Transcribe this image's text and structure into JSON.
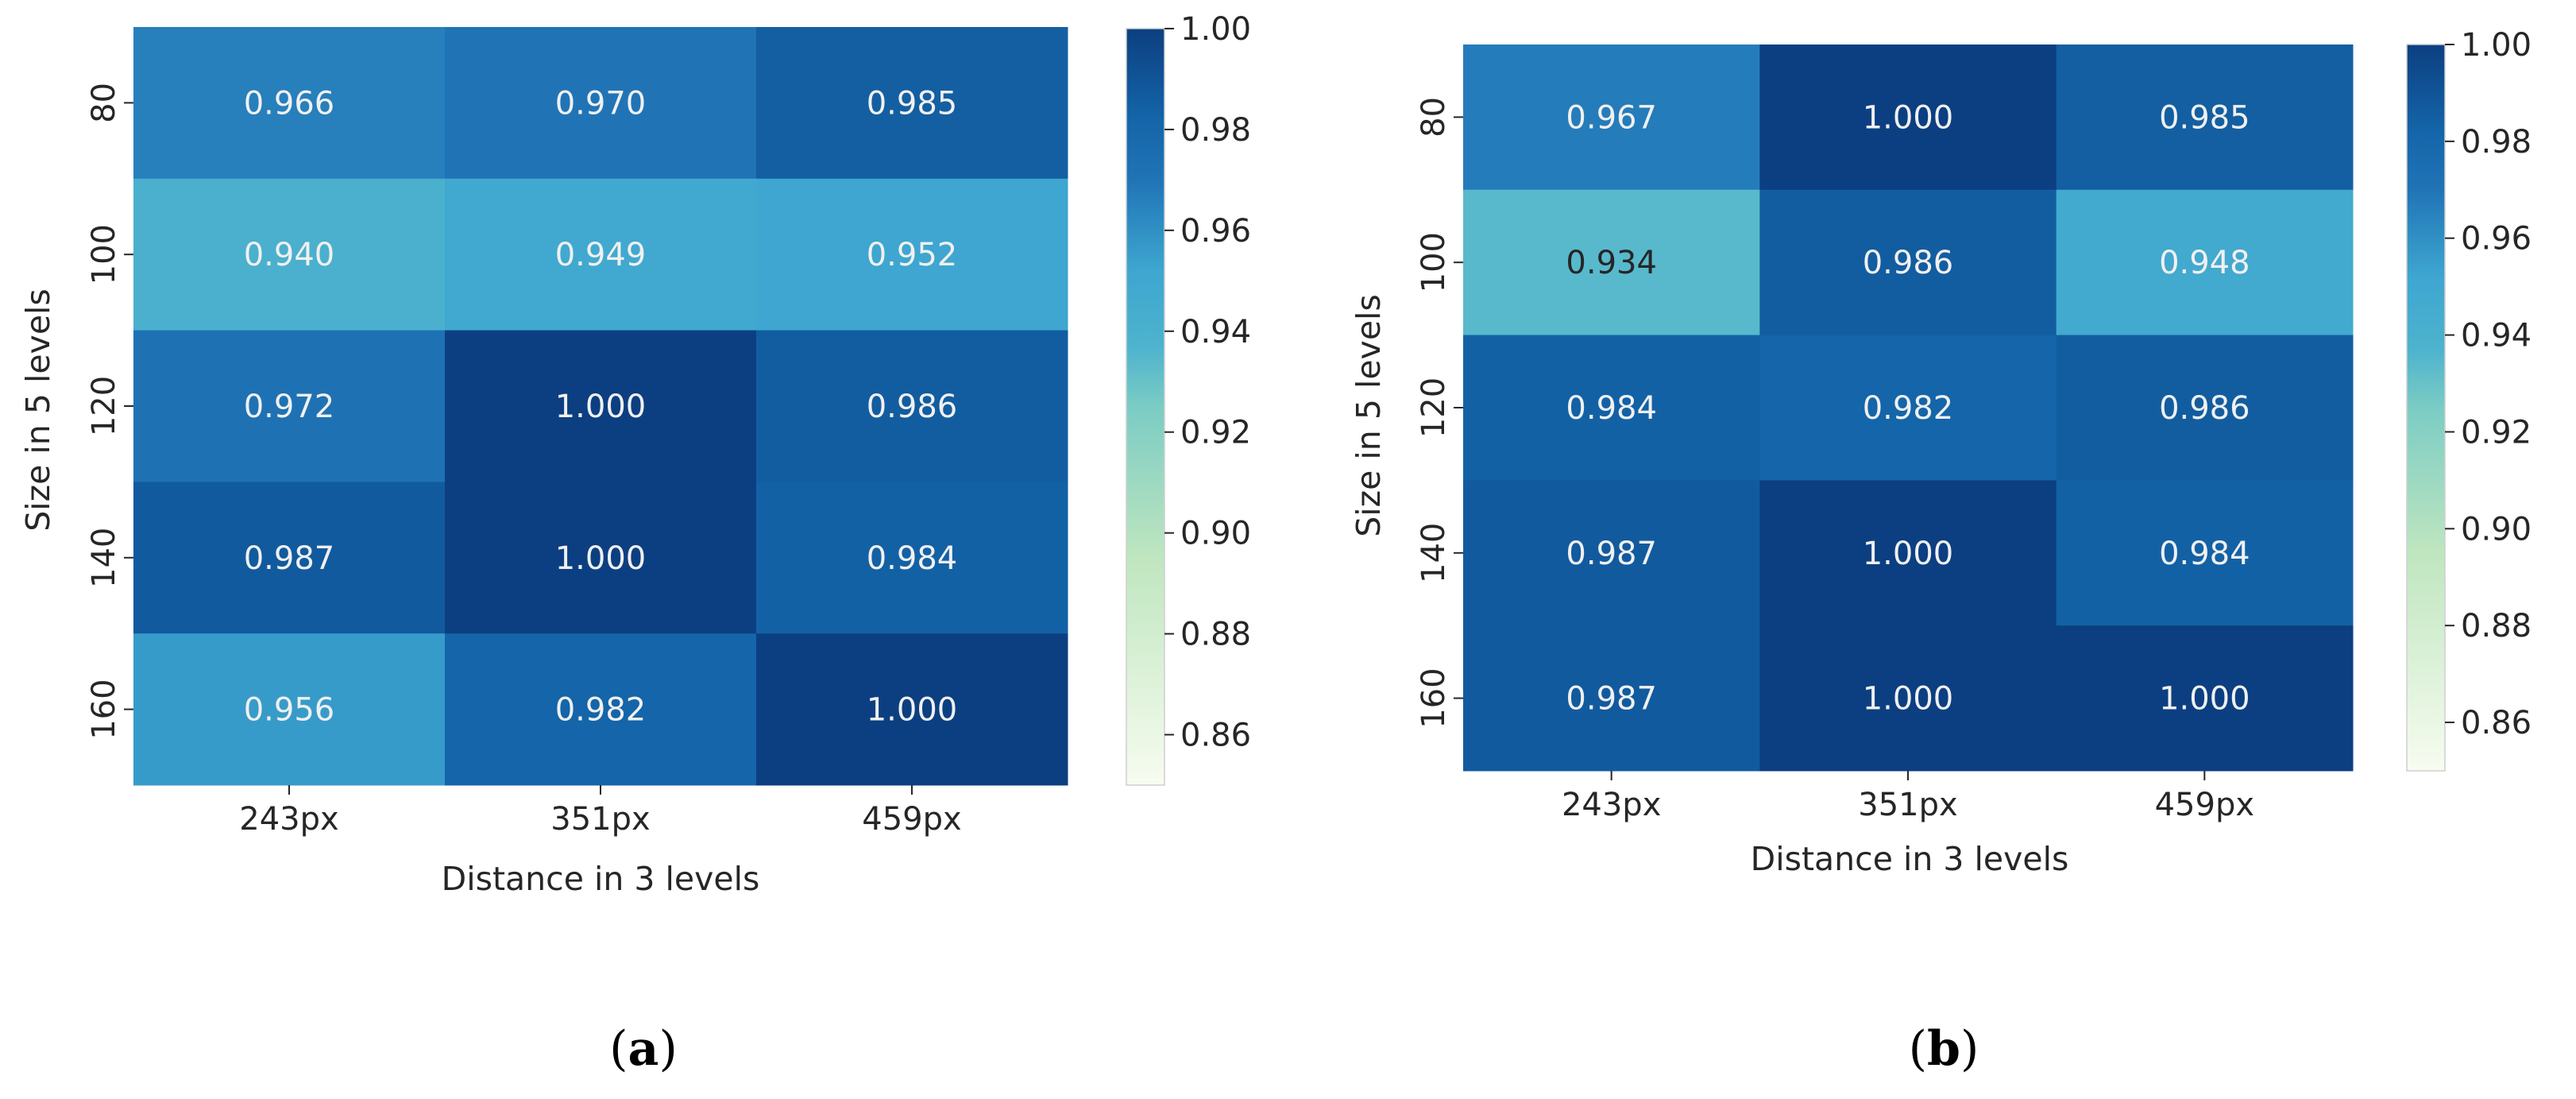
{
  "chart_data": [
    {
      "type": "heatmap",
      "panel": "a",
      "caption": {
        "open": "(",
        "letter": "a",
        "close": ")"
      },
      "xlabel": "Distance in 3 levels",
      "ylabel": "Size in 5 levels",
      "x_categories": [
        "243px",
        "351px",
        "459px"
      ],
      "y_categories": [
        "80",
        "100",
        "120",
        "140",
        "160"
      ],
      "values": [
        [
          0.966,
          0.97,
          0.985
        ],
        [
          0.94,
          0.949,
          0.952
        ],
        [
          0.972,
          1.0,
          0.986
        ],
        [
          0.987,
          1.0,
          0.984
        ],
        [
          0.956,
          0.982,
          1.0
        ]
      ],
      "cell_labels": [
        [
          "0.966",
          "0.970",
          "0.985"
        ],
        [
          "0.940",
          "0.949",
          "0.952"
        ],
        [
          "0.972",
          "1.000",
          "0.986"
        ],
        [
          "0.987",
          "1.000",
          "0.984"
        ],
        [
          "0.956",
          "0.982",
          "1.000"
        ]
      ],
      "colorbar": {
        "colormap": "GnBu",
        "range": [
          0.85,
          1.0
        ],
        "ticks": [
          0.86,
          0.88,
          0.9,
          0.92,
          0.94,
          0.96,
          0.98,
          1.0
        ],
        "tick_labels": [
          "0.86",
          "0.88",
          "0.90",
          "0.92",
          "0.94",
          "0.96",
          "0.98",
          "1.00"
        ]
      }
    },
    {
      "type": "heatmap",
      "panel": "b",
      "caption": {
        "open": "(",
        "letter": "b",
        "close": ")"
      },
      "xlabel": "Distance in 3 levels",
      "ylabel": "Size in 5 levels",
      "x_categories": [
        "243px",
        "351px",
        "459px"
      ],
      "y_categories": [
        "80",
        "100",
        "120",
        "140",
        "160"
      ],
      "values": [
        [
          0.967,
          1.0,
          0.985
        ],
        [
          0.934,
          0.986,
          0.948
        ],
        [
          0.984,
          0.982,
          0.986
        ],
        [
          0.987,
          1.0,
          0.984
        ],
        [
          0.987,
          1.0,
          1.0
        ]
      ],
      "cell_labels": [
        [
          "0.967",
          "1.000",
          "0.985"
        ],
        [
          "0.934",
          "0.986",
          "0.948"
        ],
        [
          "0.984",
          "0.982",
          "0.986"
        ],
        [
          "0.987",
          "1.000",
          "0.984"
        ],
        [
          "0.987",
          "1.000",
          "1.000"
        ]
      ],
      "colorbar": {
        "colormap": "GnBu",
        "range": [
          0.85,
          1.0
        ],
        "ticks": [
          0.86,
          0.88,
          0.9,
          0.92,
          0.94,
          0.96,
          0.98,
          1.0
        ],
        "tick_labels": [
          "0.86",
          "0.88",
          "0.90",
          "0.92",
          "0.94",
          "0.96",
          "0.98",
          "1.00"
        ]
      }
    }
  ],
  "colormap_stops": [
    {
      "t": 0.0,
      "color": "#f7fcf0"
    },
    {
      "t": 0.3,
      "color": "#bfe6bf"
    },
    {
      "t": 0.5,
      "color": "#7bccc4"
    },
    {
      "t": 0.58,
      "color": "#4db3ce"
    },
    {
      "t": 0.68,
      "color": "#3ea6d0"
    },
    {
      "t": 0.8,
      "color": "#2074b6"
    },
    {
      "t": 0.88,
      "color": "#1465a9"
    },
    {
      "t": 1.0,
      "color": "#0c3f81"
    }
  ],
  "text_colors": {
    "light": "#f0f0f0",
    "dark": "#262626"
  }
}
